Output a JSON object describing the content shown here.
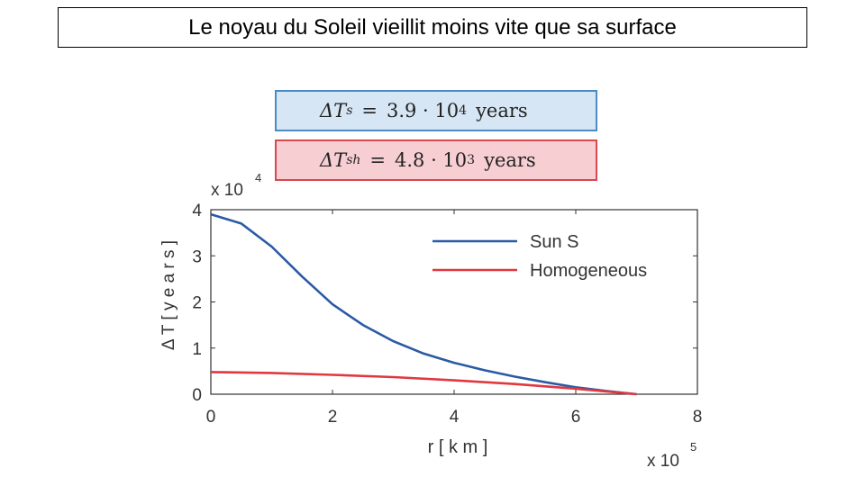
{
  "slide": {
    "title": "Le noyau du Soleil vieillit moins vite que sa surface"
  },
  "equations": {
    "sun": {
      "symbol": "ΔT",
      "subscript": "s",
      "equals": "=",
      "mantissa": "3.9 · 10",
      "exponent": "4",
      "unit": "years"
    },
    "homogeneous": {
      "symbol": "ΔT",
      "subscript": "sh",
      "equals": "=",
      "mantissa": "4.8 · 10",
      "exponent": "3",
      "unit": "years"
    }
  },
  "colors": {
    "sun": "#2a5aa3",
    "homogeneous": "#e0383f",
    "accent_blue": "#4a8cc4",
    "accent_red": "#d9474f"
  },
  "chart_data": {
    "type": "line",
    "xlabel": "r [ k m   ]",
    "ylabel": "Δ T   [ y e a r s ]",
    "x_multiplier": "x 10",
    "x_multiplier_exp": "5",
    "y_multiplier": "x 10",
    "y_multiplier_exp": "4",
    "xlim": [
      0,
      8
    ],
    "ylim": [
      0,
      4
    ],
    "xticks": [
      "0",
      "2",
      "4",
      "6",
      "8"
    ],
    "yticks": [
      "0",
      "1",
      "2",
      "3",
      "4"
    ],
    "legend_position": "top-right",
    "series": [
      {
        "name": "Sun S",
        "x": [
          0,
          0.5,
          1,
          1.5,
          2,
          2.5,
          3,
          3.5,
          4,
          4.5,
          5,
          5.5,
          6,
          6.5,
          7
        ],
        "y": [
          3.9,
          3.7,
          3.2,
          2.55,
          1.95,
          1.5,
          1.15,
          0.88,
          0.68,
          0.52,
          0.38,
          0.26,
          0.15,
          0.07,
          0.0
        ]
      },
      {
        "name": "Homogeneous",
        "x": [
          0,
          1,
          2,
          3,
          4,
          5,
          5.5,
          6,
          6.5,
          7
        ],
        "y": [
          0.48,
          0.46,
          0.42,
          0.37,
          0.3,
          0.22,
          0.17,
          0.12,
          0.06,
          0.0
        ]
      }
    ]
  }
}
